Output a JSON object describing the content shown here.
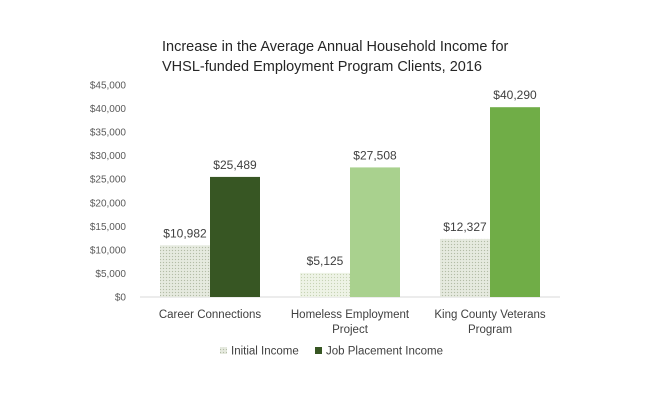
{
  "chart_data": {
    "type": "bar",
    "title_lines": [
      "Increase in the Average Annual Household Income for",
      "VHSL-funded Employment Program Clients, 2016"
    ],
    "categories": [
      [
        "Career Connections"
      ],
      [
        "Homeless Employment",
        "Project"
      ],
      [
        "King County Veterans",
        "Program"
      ]
    ],
    "series": [
      {
        "name": "Initial Income",
        "values": [
          10982,
          5125,
          12327
        ],
        "labels": [
          "$10,982",
          "$5,125",
          "$12,327"
        ],
        "colors": [
          "#d0d6c6",
          "#e3ead8",
          "#dfe5d2"
        ],
        "patterned": true
      },
      {
        "name": "Job Placement Income",
        "values": [
          25489,
          27508,
          40290
        ],
        "labels": [
          "$25,489",
          "$27,508",
          "$40,290"
        ],
        "colors": [
          "#375623",
          "#a9d18e",
          "#70ad47"
        ],
        "patterned": false
      }
    ],
    "ylim": [
      0,
      45000
    ],
    "ytick_values": [
      0,
      5000,
      10000,
      15000,
      20000,
      25000,
      30000,
      35000,
      40000,
      45000
    ],
    "ytick_labels": [
      "$0",
      "$5,000",
      "$10,000",
      "$15,000",
      "$20,000",
      "$25,000",
      "$30,000",
      "$35,000",
      "$40,000",
      "$45,000"
    ],
    "grid": false,
    "legend_position": "bottom"
  }
}
